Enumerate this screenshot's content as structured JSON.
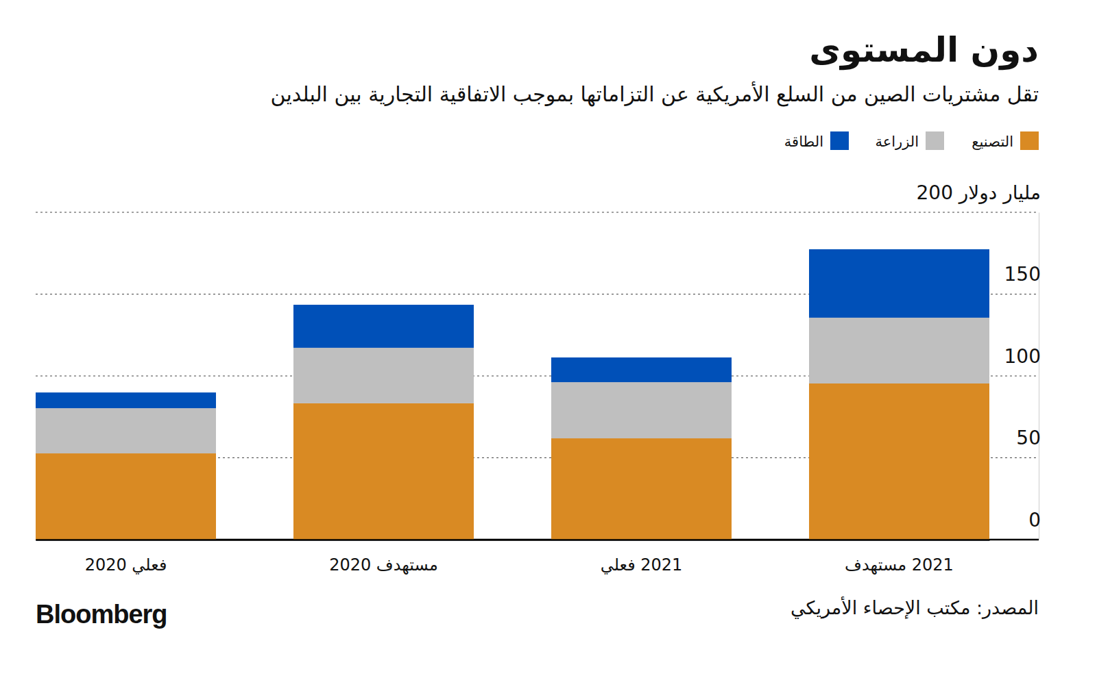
{
  "chart_data": {
    "type": "bar",
    "stacked": true,
    "title": "دون المستوى",
    "subtitle": "تقل مشتريات الصين من السلع الأمريكية عن التزاماتها بموجب الاتفاقية التجارية بين البلدين",
    "source": "المصدر: مكتب الإحصاء الأمريكي",
    "credit": "Bloomberg",
    "categories": [
      "فعلي 2020",
      "مستهدف 2020",
      "2021 فعلي",
      "2021 مستهدف"
    ],
    "series": [
      {
        "name": "التصنيع",
        "color": "#d98a23",
        "values": [
          52.7,
          83.3,
          61.9,
          95.4
        ]
      },
      {
        "name": "الزراعة",
        "color": "#bfbfbf",
        "values": [
          27.6,
          33.9,
          34.3,
          40.2
        ]
      },
      {
        "name": "الطاقة",
        "color": "#0050b8",
        "values": [
          9.6,
          26.3,
          15.1,
          41.8
        ]
      }
    ],
    "ylim": [
      0,
      200
    ],
    "yticks": [
      0,
      50,
      100,
      150,
      {
        "value": 200,
        "label": "200 مليار دولار"
      }
    ],
    "grid": true,
    "legend": "top-right"
  }
}
